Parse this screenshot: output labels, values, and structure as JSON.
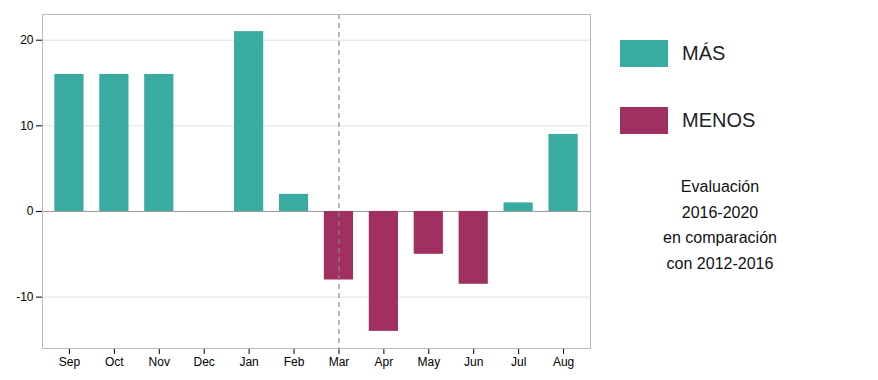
{
  "chart_data": {
    "type": "bar",
    "categories": [
      "Sep",
      "Oct",
      "Nov",
      "Dec",
      "Jan",
      "Feb",
      "Mar",
      "Apr",
      "May",
      "Jun",
      "Jul",
      "Aug"
    ],
    "series": [
      {
        "name": "MÁS",
        "color": "#3aaba0",
        "values": [
          16,
          16,
          16,
          0,
          21,
          2,
          null,
          null,
          null,
          null,
          1,
          9
        ]
      },
      {
        "name": "MENOS",
        "color": "#a03060",
        "values": [
          null,
          null,
          null,
          null,
          null,
          null,
          -8,
          -14,
          -5,
          -8.5,
          null,
          null
        ]
      }
    ],
    "ylim": [
      -16,
      23
    ],
    "yticks": [
      -10,
      0,
      10,
      20
    ],
    "grid": true,
    "legend": "right",
    "annotation": "Evaluación\n2016-2020\nen comparación\ncon 2012-2016",
    "vline": "Mar"
  }
}
